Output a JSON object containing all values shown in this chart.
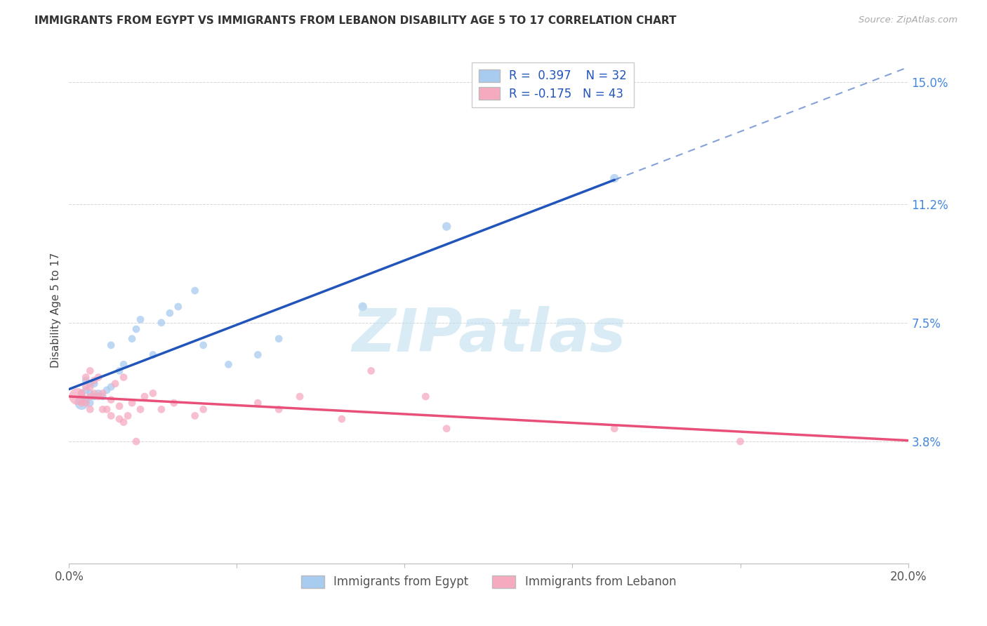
{
  "title": "IMMIGRANTS FROM EGYPT VS IMMIGRANTS FROM LEBANON DISABILITY AGE 5 TO 17 CORRELATION CHART",
  "source": "Source: ZipAtlas.com",
  "ylabel": "Disability Age 5 to 17",
  "xlim": [
    0.0,
    0.2
  ],
  "ylim": [
    0.0,
    0.158
  ],
  "egypt_color": "#A8CBF0",
  "lebanon_color": "#F5AABF",
  "egypt_line_color": "#2255BB",
  "lebanon_line_color": "#E8507A",
  "egypt_R": 0.397,
  "egypt_N": 32,
  "lebanon_R": -0.175,
  "lebanon_N": 43,
  "watermark": "ZIPatlas",
  "egypt_x": [
    0.003,
    0.003,
    0.004,
    0.004,
    0.004,
    0.005,
    0.005,
    0.005,
    0.006,
    0.006,
    0.007,
    0.008,
    0.009,
    0.01,
    0.01,
    0.012,
    0.013,
    0.015,
    0.016,
    0.017,
    0.02,
    0.022,
    0.024,
    0.026,
    0.03,
    0.032,
    0.038,
    0.045,
    0.05,
    0.07,
    0.09,
    0.13
  ],
  "egypt_y": [
    0.05,
    0.053,
    0.051,
    0.054,
    0.057,
    0.05,
    0.053,
    0.056,
    0.052,
    0.056,
    0.053,
    0.052,
    0.054,
    0.068,
    0.055,
    0.06,
    0.062,
    0.07,
    0.073,
    0.076,
    0.065,
    0.075,
    0.078,
    0.08,
    0.085,
    0.068,
    0.062,
    0.065,
    0.07,
    0.08,
    0.105,
    0.12
  ],
  "egypt_sizes": [
    200,
    60,
    60,
    60,
    60,
    60,
    60,
    60,
    60,
    60,
    60,
    60,
    60,
    60,
    60,
    60,
    60,
    60,
    60,
    60,
    60,
    60,
    60,
    60,
    60,
    60,
    60,
    60,
    60,
    80,
    80,
    80
  ],
  "lebanon_x": [
    0.002,
    0.003,
    0.003,
    0.004,
    0.004,
    0.004,
    0.005,
    0.005,
    0.005,
    0.005,
    0.006,
    0.006,
    0.007,
    0.007,
    0.008,
    0.008,
    0.009,
    0.01,
    0.01,
    0.011,
    0.012,
    0.012,
    0.013,
    0.013,
    0.014,
    0.015,
    0.016,
    0.017,
    0.018,
    0.02,
    0.022,
    0.025,
    0.03,
    0.032,
    0.045,
    0.05,
    0.055,
    0.065,
    0.072,
    0.085,
    0.09,
    0.13,
    0.16
  ],
  "lebanon_y": [
    0.052,
    0.05,
    0.053,
    0.05,
    0.055,
    0.058,
    0.048,
    0.052,
    0.055,
    0.06,
    0.053,
    0.057,
    0.052,
    0.058,
    0.048,
    0.053,
    0.048,
    0.046,
    0.051,
    0.056,
    0.045,
    0.049,
    0.044,
    0.058,
    0.046,
    0.05,
    0.038,
    0.048,
    0.052,
    0.053,
    0.048,
    0.05,
    0.046,
    0.048,
    0.05,
    0.048,
    0.052,
    0.045,
    0.06,
    0.052,
    0.042,
    0.042,
    0.038
  ],
  "lebanon_sizes": [
    300,
    60,
    60,
    60,
    60,
    60,
    60,
    60,
    60,
    60,
    60,
    60,
    60,
    60,
    60,
    60,
    60,
    60,
    60,
    60,
    60,
    60,
    60,
    60,
    60,
    60,
    60,
    60,
    60,
    60,
    60,
    60,
    60,
    60,
    60,
    60,
    60,
    60,
    60,
    60,
    60,
    60,
    60
  ]
}
